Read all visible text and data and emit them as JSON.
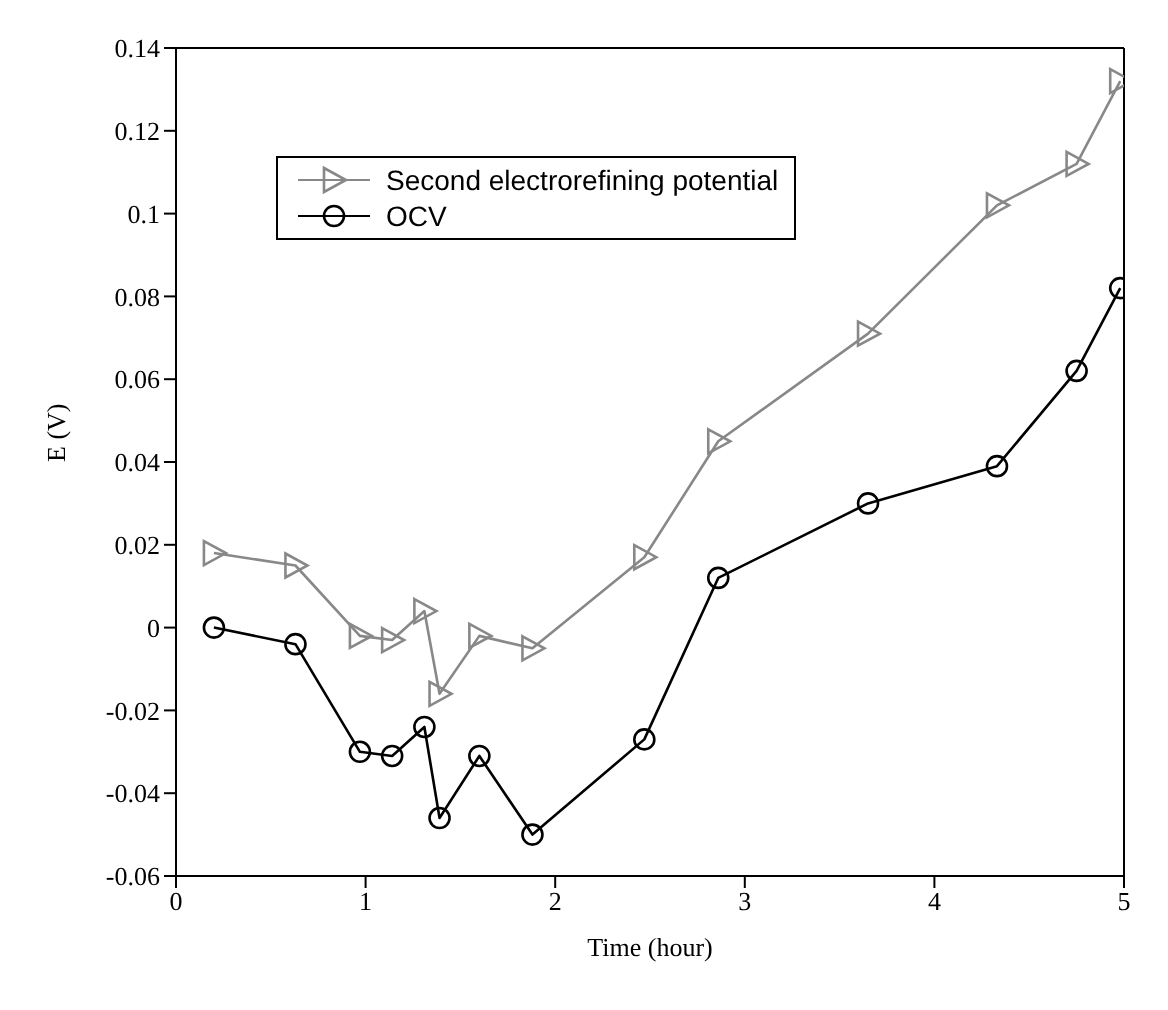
{
  "chart_data": {
    "type": "line",
    "xlabel": "Time (hour)",
    "ylabel": "E (V)",
    "x": [
      0.2,
      0.63,
      0.97,
      1.14,
      1.31,
      1.39,
      1.6,
      1.88,
      2.47,
      2.86,
      3.65,
      4.33,
      4.75,
      4.98
    ],
    "series": [
      {
        "name": "Second electrorefining potential",
        "color": "#888888",
        "marker": "triangle",
        "values": [
          0.018,
          0.015,
          -0.002,
          -0.003,
          0.004,
          -0.016,
          -0.002,
          -0.005,
          0.017,
          0.045,
          0.071,
          0.102,
          0.112,
          0.132
        ]
      },
      {
        "name": "OCV",
        "color": "#000000",
        "marker": "circle",
        "values": [
          0,
          -0.004,
          -0.03,
          -0.031,
          -0.024,
          -0.046,
          -0.031,
          -0.05,
          -0.027,
          0.012,
          0.03,
          0.039,
          0.062,
          0.082
        ]
      }
    ],
    "xlim": [
      0,
      5
    ],
    "xticks": [
      0,
      1,
      2,
      3,
      4,
      5
    ],
    "ylim": [
      -0.06,
      0.14
    ],
    "yticks": [
      -0.06,
      -0.04,
      -0.02,
      0,
      0.02,
      0.04,
      0.06,
      0.08,
      0.1,
      0.12,
      0.14
    ],
    "grid": false,
    "legend": "top left",
    "line_style": "solid"
  }
}
